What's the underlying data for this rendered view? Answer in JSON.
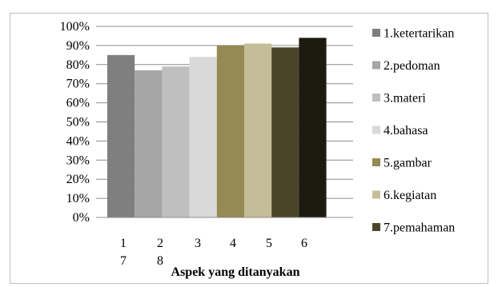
{
  "chart_data": {
    "type": "bar",
    "xlabel": "Aspek yang ditanyakan",
    "ylabel": "",
    "ylim": [
      0,
      100
    ],
    "y_ticks": [
      "0%",
      "10%",
      "20%",
      "30%",
      "40%",
      "50%",
      "60%",
      "70%",
      "80%",
      "90%",
      "100%"
    ],
    "grid": true,
    "legend_position": "right",
    "x_ticks": [
      "1",
      "2",
      "3",
      "4",
      "5",
      "6"
    ],
    "x_ticks_second_row": [
      "7",
      "8"
    ],
    "series": [
      {
        "name": "1.ketertarikan",
        "values": [
          85
        ],
        "color": "#7f7f7f"
      },
      {
        "name": "2.pedoman",
        "values": [
          77
        ],
        "color": "#a5a5a5"
      },
      {
        "name": "3.materi",
        "values": [
          79
        ],
        "color": "#bfbfbf"
      },
      {
        "name": "4.bahasa",
        "values": [
          84
        ],
        "color": "#d9d9d9"
      },
      {
        "name": "5.gambar",
        "values": [
          90
        ],
        "color": "#948a54"
      },
      {
        "name": "6.kegiatan",
        "values": [
          91
        ],
        "color": "#c4bd97"
      },
      {
        "name": "7.pemahaman",
        "values": [
          89
        ],
        "color": "#4a452a"
      },
      {
        "name": "",
        "values": [
          94
        ],
        "color": "#1d1b10"
      }
    ]
  }
}
